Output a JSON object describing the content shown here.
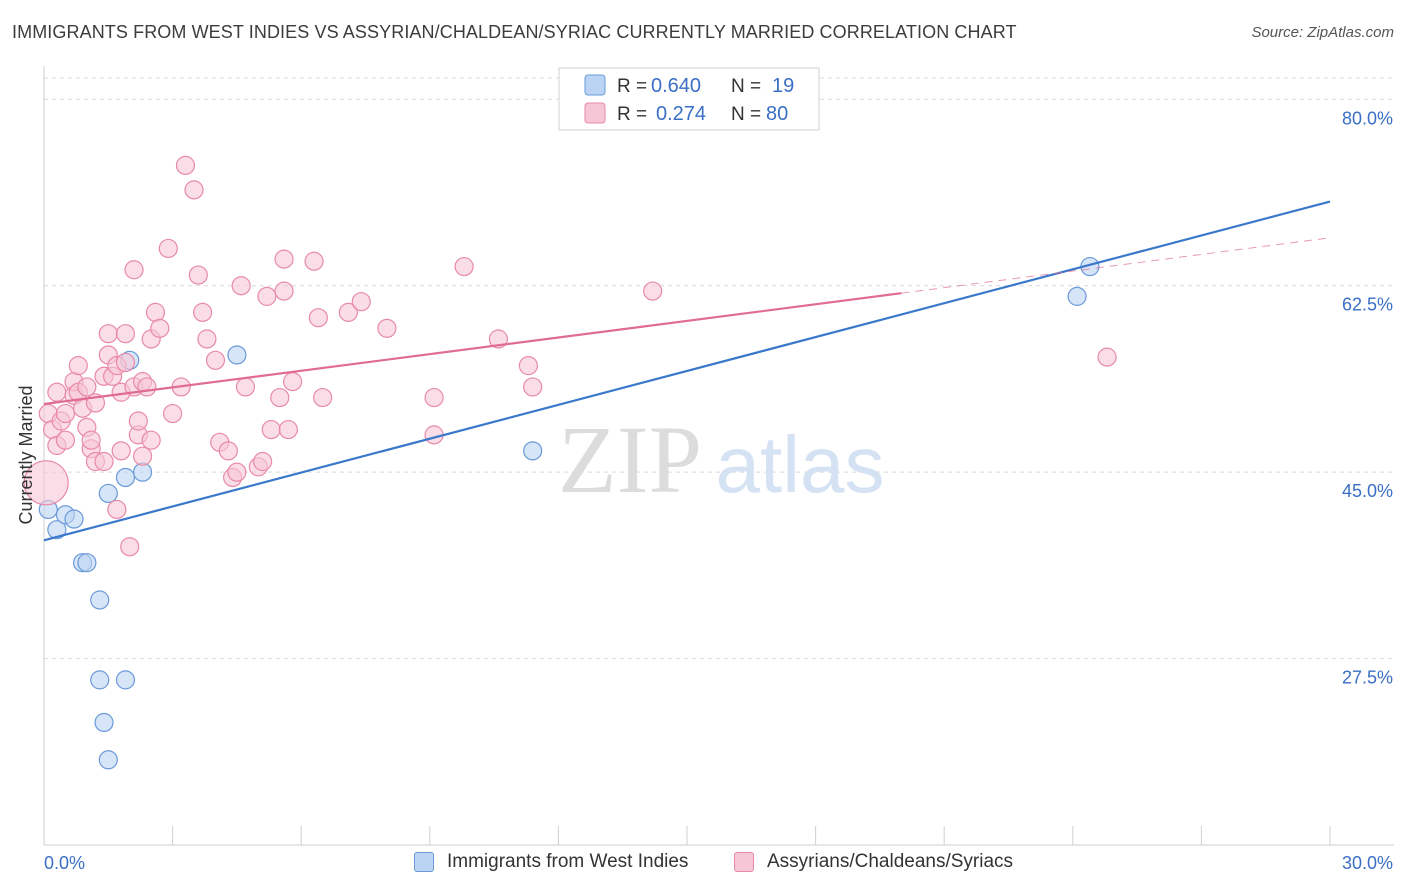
{
  "title": "IMMIGRANTS FROM WEST INDIES VS ASSYRIAN/CHALDEAN/SYRIAC CURRENTLY MARRIED CORRELATION CHART",
  "source": "Source: ZipAtlas.com",
  "watermark": {
    "zip": "ZIP",
    "atlas": "atlas"
  },
  "colors": {
    "blue_fill": "#bcd4f4",
    "blue_stroke": "#6a9ad8",
    "blue_line": "#3a78cc",
    "blue_text": "#3a6fc4",
    "pink_fill": "#f7c6d6",
    "pink_stroke": "#e88aa8",
    "pink_line": "#e06c93",
    "grid": "#d9d9d9",
    "axis_text": "#3a6fc4"
  },
  "legend_top": [
    {
      "r_label": "R =",
      "r_value": "0.640",
      "n_label": "N =",
      "n_value": "19"
    },
    {
      "r_label": "R =",
      "r_value": "0.274",
      "n_label": "N =",
      "n_value": "80"
    }
  ],
  "chart_data": {
    "type": "scatter",
    "title": "IMMIGRANTS FROM WEST INDIES VS ASSYRIAN/CHALDEAN/SYRIAC CURRENTLY MARRIED CORRELATION CHART",
    "xlabel": "",
    "ylabel": "Currently Married",
    "xlim": [
      0,
      30
    ],
    "ylim": [
      10,
      82
    ],
    "x_tick_labels": [
      "0.0%",
      "30.0%"
    ],
    "y_ticks": [
      27.5,
      45.0,
      62.5,
      80.0
    ],
    "y_tick_labels": [
      "27.5%",
      "45.0%",
      "62.5%",
      "80.0%"
    ],
    "grid": true,
    "legend_placement": "top-center and bottom",
    "series": [
      {
        "name": "Immigrants from West Indies",
        "color": "#6a9ad8",
        "x": [
          0.1,
          0.3,
          0.5,
          0.7,
          0.9,
          1.0,
          1.5,
          1.3,
          1.3,
          1.4,
          1.5,
          1.9,
          1.9,
          2.3,
          2.0,
          4.5,
          11.4,
          24.1,
          24.4
        ],
        "y": [
          41.5,
          39.6,
          41.0,
          40.6,
          36.5,
          36.5,
          43.0,
          33.0,
          25.5,
          21.5,
          18.0,
          25.5,
          44.5,
          45.0,
          55.5,
          56.0,
          47.0,
          61.5,
          64.3
        ],
        "trendline": {
          "x": [
            0.0,
            30.0
          ],
          "y": [
            38.6,
            70.4
          ]
        }
      },
      {
        "name": "Assyrians/Chaldeans/Syriacs",
        "color": "#e88aa8",
        "x": [
          0.1,
          0.2,
          0.3,
          0.3,
          0.4,
          0.5,
          0.5,
          0.7,
          0.7,
          0.8,
          0.8,
          0.9,
          1.0,
          1.0,
          1.1,
          1.1,
          1.2,
          1.2,
          1.4,
          1.4,
          1.5,
          1.5,
          1.6,
          1.7,
          1.7,
          1.8,
          1.8,
          1.9,
          1.9,
          2.0,
          2.1,
          2.1,
          2.2,
          2.2,
          2.3,
          2.3,
          2.4,
          2.5,
          2.5,
          2.6,
          2.7,
          2.9,
          3.0,
          3.2,
          3.3,
          3.5,
          3.6,
          3.7,
          3.8,
          4.0,
          4.1,
          4.3,
          4.4,
          4.5,
          4.6,
          4.7,
          5.0,
          5.1,
          5.2,
          5.3,
          5.5,
          5.6,
          5.6,
          5.7,
          5.8,
          6.3,
          6.4,
          6.5,
          7.1,
          7.4,
          8.0,
          9.1,
          9.1,
          9.8,
          10.6,
          11.3,
          11.4,
          14.2,
          24.8,
          0.05
        ],
        "y": [
          50.5,
          49.0,
          52.5,
          47.5,
          49.8,
          48.0,
          50.5,
          52.2,
          53.5,
          52.5,
          55.0,
          51.0,
          49.2,
          53.0,
          47.2,
          48.0,
          46.0,
          51.5,
          54.0,
          46.0,
          58.0,
          56.0,
          54.0,
          41.5,
          55.0,
          47.0,
          52.5,
          55.3,
          58.0,
          38.0,
          64.0,
          53.0,
          48.5,
          49.8,
          53.5,
          46.5,
          53.0,
          48.0,
          57.5,
          60.0,
          58.5,
          66.0,
          50.5,
          53.0,
          73.8,
          71.5,
          63.5,
          60.0,
          57.5,
          55.5,
          47.8,
          47.0,
          44.5,
          45.0,
          62.5,
          53.0,
          45.5,
          46.0,
          61.5,
          49.0,
          52.0,
          62.0,
          65.0,
          49.0,
          53.5,
          64.8,
          59.5,
          52.0,
          60.0,
          61.0,
          58.5,
          52.0,
          48.5,
          64.3,
          57.5,
          55.0,
          53.0,
          62.0,
          55.8,
          44.0
        ],
        "trendline": {
          "x": [
            0.0,
            20.0
          ],
          "y": [
            51.4,
            61.8
          ]
        },
        "trendline_extension": {
          "x": [
            20.0,
            30.0
          ],
          "y": [
            61.8,
            67.0
          ]
        }
      }
    ]
  }
}
